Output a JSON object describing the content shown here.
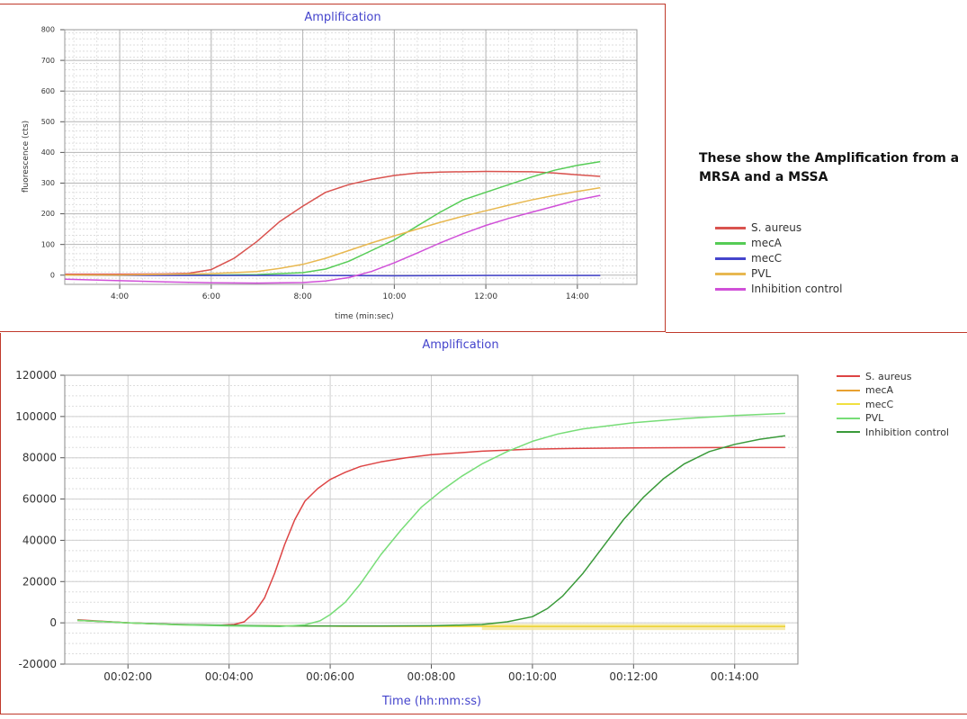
{
  "caption": {
    "text": "These show the Amplification from a MRSA and a MSSA"
  },
  "chart_data": [
    {
      "type": "line",
      "title": "Amplification",
      "xlabel": "time (min:sec)",
      "ylabel": "fluorescence (cts)",
      "x_unit": "minutes",
      "xlim": [
        2.8,
        15.3
      ],
      "ylim": [
        -30,
        800
      ],
      "x_ticks": [
        4,
        6,
        8,
        10,
        12,
        14
      ],
      "x_tick_labels": [
        "4:00",
        "6:00",
        "8:00",
        "10:00",
        "12:00",
        "14:00"
      ],
      "y_ticks": [
        0,
        100,
        200,
        300,
        400,
        500,
        600,
        700,
        800
      ],
      "y_tick_labels": [
        "0",
        "100",
        "200",
        "300",
        "400",
        "500",
        "600",
        "700",
        "800"
      ],
      "grid": true,
      "legend_position": "right",
      "series": [
        {
          "name": "S. aureus",
          "color": "#d9534f",
          "x": [
            2.8,
            4,
            5,
            5.5,
            6,
            6.5,
            7,
            7.5,
            8,
            8.5,
            9,
            9.5,
            10,
            10.5,
            11,
            12,
            13,
            13.5,
            14,
            14.5
          ],
          "y": [
            3,
            3,
            4,
            6,
            18,
            55,
            110,
            175,
            225,
            270,
            295,
            312,
            325,
            333,
            336,
            338,
            337,
            333,
            327,
            322
          ]
        },
        {
          "name": "mecA",
          "color": "#55cc55",
          "x": [
            2.8,
            4,
            6,
            7,
            8,
            8.5,
            9,
            9.5,
            10,
            10.5,
            11,
            11.5,
            12,
            12.5,
            13,
            13.5,
            14,
            14.5
          ],
          "y": [
            0,
            0,
            0,
            2,
            8,
            20,
            45,
            80,
            115,
            160,
            205,
            245,
            270,
            295,
            320,
            342,
            358,
            370
          ]
        },
        {
          "name": "mecC",
          "color": "#4444cc",
          "x": [
            2.8,
            5,
            8,
            10,
            12,
            14,
            14.5
          ],
          "y": [
            0,
            -1,
            -1,
            -2,
            -1,
            -1,
            -1
          ]
        },
        {
          "name": "PVL",
          "color": "#e8b850",
          "x": [
            2.8,
            4,
            6,
            7,
            7.5,
            8,
            8.5,
            9,
            9.5,
            10,
            10.5,
            11,
            11.5,
            12,
            12.5,
            13,
            13.5,
            14,
            14.5
          ],
          "y": [
            0,
            0,
            5,
            12,
            22,
            35,
            55,
            80,
            105,
            128,
            150,
            172,
            192,
            210,
            228,
            245,
            260,
            273,
            285
          ]
        },
        {
          "name": "Inhibition control",
          "color": "#d050d8",
          "x": [
            2.8,
            4,
            5,
            6,
            7,
            8,
            8.5,
            9,
            9.5,
            10,
            10.5,
            11,
            11.5,
            12,
            12.5,
            13,
            13.5,
            14,
            14.5
          ],
          "y": [
            -13,
            -18,
            -22,
            -25,
            -26,
            -24,
            -19,
            -8,
            12,
            40,
            72,
            105,
            135,
            162,
            185,
            205,
            225,
            245,
            260
          ]
        }
      ]
    },
    {
      "type": "line",
      "title": "Amplification",
      "xlabel": "Time (hh:mm:ss)",
      "ylabel": "",
      "x_unit": "minutes",
      "xlim": [
        0.75,
        15.25
      ],
      "ylim": [
        -20000,
        120000
      ],
      "x_ticks": [
        2,
        4,
        6,
        8,
        10,
        12,
        14
      ],
      "x_tick_labels": [
        "00:02:00",
        "00:04:00",
        "00:06:00",
        "00:08:00",
        "00:10:00",
        "00:12:00",
        "00:14:00"
      ],
      "y_ticks": [
        -20000,
        0,
        20000,
        40000,
        60000,
        80000,
        100000,
        120000
      ],
      "y_tick_labels": [
        "-20000",
        "0",
        "20000",
        "40000",
        "60000",
        "80000",
        "100000",
        "120000"
      ],
      "grid": true,
      "legend_position": "top-right",
      "band": {
        "series": "mecC",
        "x_from": 9,
        "x_to": 15,
        "y_from": -3500,
        "y_to": -500,
        "color": "#f3e6a0"
      },
      "series": [
        {
          "name": "S. aureus",
          "color": "#dd4444",
          "x": [
            1,
            2,
            3,
            3.8,
            4.1,
            4.3,
            4.5,
            4.7,
            4.9,
            5.1,
            5.3,
            5.5,
            5.75,
            6,
            6.3,
            6.6,
            7,
            7.5,
            8,
            9,
            10,
            11,
            12,
            13,
            14,
            15
          ],
          "y": [
            1500,
            0,
            -800,
            -1200,
            -800,
            500,
            5000,
            12000,
            24000,
            38000,
            50000,
            59000,
            65000,
            69500,
            73000,
            75800,
            78000,
            80000,
            81500,
            83200,
            84200,
            84600,
            84800,
            84900,
            85000,
            85000
          ]
        },
        {
          "name": "mecA",
          "color": "#e8a030",
          "x": [
            1,
            2,
            3,
            4,
            5,
            6,
            7,
            8,
            9,
            10,
            11,
            12,
            13,
            14,
            15
          ],
          "y": [
            1200,
            0,
            -900,
            -1300,
            -1500,
            -1600,
            -1650,
            -1700,
            -1700,
            -1750,
            -1750,
            -1800,
            -1800,
            -1800,
            -1800
          ]
        },
        {
          "name": "mecC",
          "color": "#f0e040",
          "x": [
            1,
            2,
            3,
            4,
            5,
            6,
            7,
            8,
            9,
            10,
            11,
            12,
            13,
            14,
            15
          ],
          "y": [
            1200,
            0,
            -900,
            -1300,
            -1500,
            -1600,
            -1650,
            -1700,
            -1700,
            -1700,
            -1700,
            -1700,
            -1700,
            -1700,
            -1700
          ]
        },
        {
          "name": "PVL",
          "color": "#77dd77",
          "x": [
            1,
            2,
            3,
            4,
            5,
            5.5,
            5.8,
            6,
            6.3,
            6.6,
            7,
            7.4,
            7.8,
            8.2,
            8.6,
            9,
            9.5,
            10,
            10.5,
            11,
            12,
            13,
            14,
            15
          ],
          "y": [
            1200,
            0,
            -1000,
            -1500,
            -1800,
            -1000,
            1000,
            4000,
            10000,
            19000,
            33000,
            45000,
            56000,
            64000,
            71000,
            77000,
            83000,
            88000,
            91500,
            94000,
            97000,
            99000,
            100500,
            101500
          ]
        },
        {
          "name": "Inhibition control",
          "color": "#3a9a3a",
          "x": [
            1,
            2,
            3,
            4,
            5,
            6,
            7,
            8,
            9,
            9.5,
            10,
            10.3,
            10.6,
            11,
            11.4,
            11.8,
            12.2,
            12.6,
            13,
            13.5,
            14,
            14.5,
            15
          ],
          "y": [
            1200,
            0,
            -800,
            -1200,
            -1500,
            -1500,
            -1500,
            -1400,
            -800,
            500,
            3000,
            7000,
            13000,
            24000,
            37000,
            50000,
            61000,
            70000,
            77000,
            83000,
            86500,
            89000,
            90700
          ]
        }
      ]
    }
  ]
}
